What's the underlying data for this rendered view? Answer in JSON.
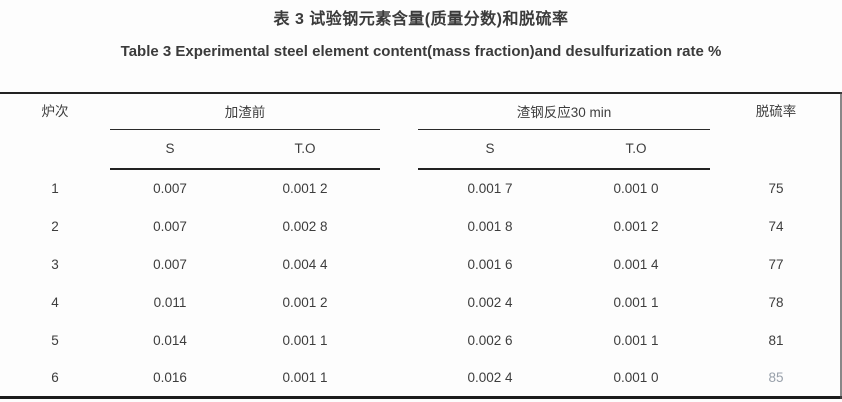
{
  "page": {
    "background": "#fdfdfd",
    "rule_color": "#222222",
    "text_color": "#3b3b3b"
  },
  "caption": {
    "zh": "表 3 试验钢元素含量(质量分数)和脱硫率",
    "en": "Table 3 Experimental steel element content(mass fraction)and desulfurization rate %"
  },
  "table": {
    "header": {
      "heat": "炉次",
      "group_before": "加渣前",
      "group_after": "渣钢反应30 min",
      "rate": "脱硫率",
      "sub_s1": "S",
      "sub_to1": "T.O",
      "sub_s2": "S",
      "sub_to2": "T.O"
    },
    "rows": [
      {
        "heat": "1",
        "s_before": "0.007",
        "to_before": "0.001 2",
        "s_after": "0.001 7",
        "to_after": "0.001 0",
        "rate": "75"
      },
      {
        "heat": "2",
        "s_before": "0.007",
        "to_before": "0.002 8",
        "s_after": "0.001 8",
        "to_after": "0.001 2",
        "rate": "74"
      },
      {
        "heat": "3",
        "s_before": "0.007",
        "to_before": "0.004 4",
        "s_after": "0.001 6",
        "to_after": "0.001 4",
        "rate": "77"
      },
      {
        "heat": "4",
        "s_before": "0.011",
        "to_before": "0.001 2",
        "s_after": "0.002 4",
        "to_after": "0.001 1",
        "rate": "78"
      },
      {
        "heat": "5",
        "s_before": "0.014",
        "to_before": "0.001 1",
        "s_after": "0.002 6",
        "to_after": "0.001 1",
        "rate": "81"
      },
      {
        "heat": "6",
        "s_before": "0.016",
        "to_before": "0.001 1",
        "s_after": "0.002 4",
        "to_after": "0.001 0",
        "rate": "85"
      }
    ]
  },
  "chart_data": {
    "type": "table",
    "title": "表 3 试验钢元素含量(质量分数)和脱硫率 / Table 3 Experimental steel element content(mass fraction)and desulfurization rate %",
    "unit": "%",
    "columns": [
      "炉次",
      "加渣前 S",
      "加渣前 T.O",
      "渣钢反应30 min S",
      "渣钢反应30 min T.O",
      "脱硫率"
    ],
    "values": [
      [
        1,
        0.007,
        0.0012,
        0.0017,
        0.001,
        75
      ],
      [
        2,
        0.007,
        0.0028,
        0.0018,
        0.0012,
        74
      ],
      [
        3,
        0.007,
        0.0044,
        0.0016,
        0.0014,
        77
      ],
      [
        4,
        0.011,
        0.0012,
        0.0024,
        0.0011,
        78
      ],
      [
        5,
        0.014,
        0.0011,
        0.0026,
        0.0011,
        81
      ],
      [
        6,
        0.016,
        0.0011,
        0.0024,
        0.001,
        85
      ]
    ]
  }
}
